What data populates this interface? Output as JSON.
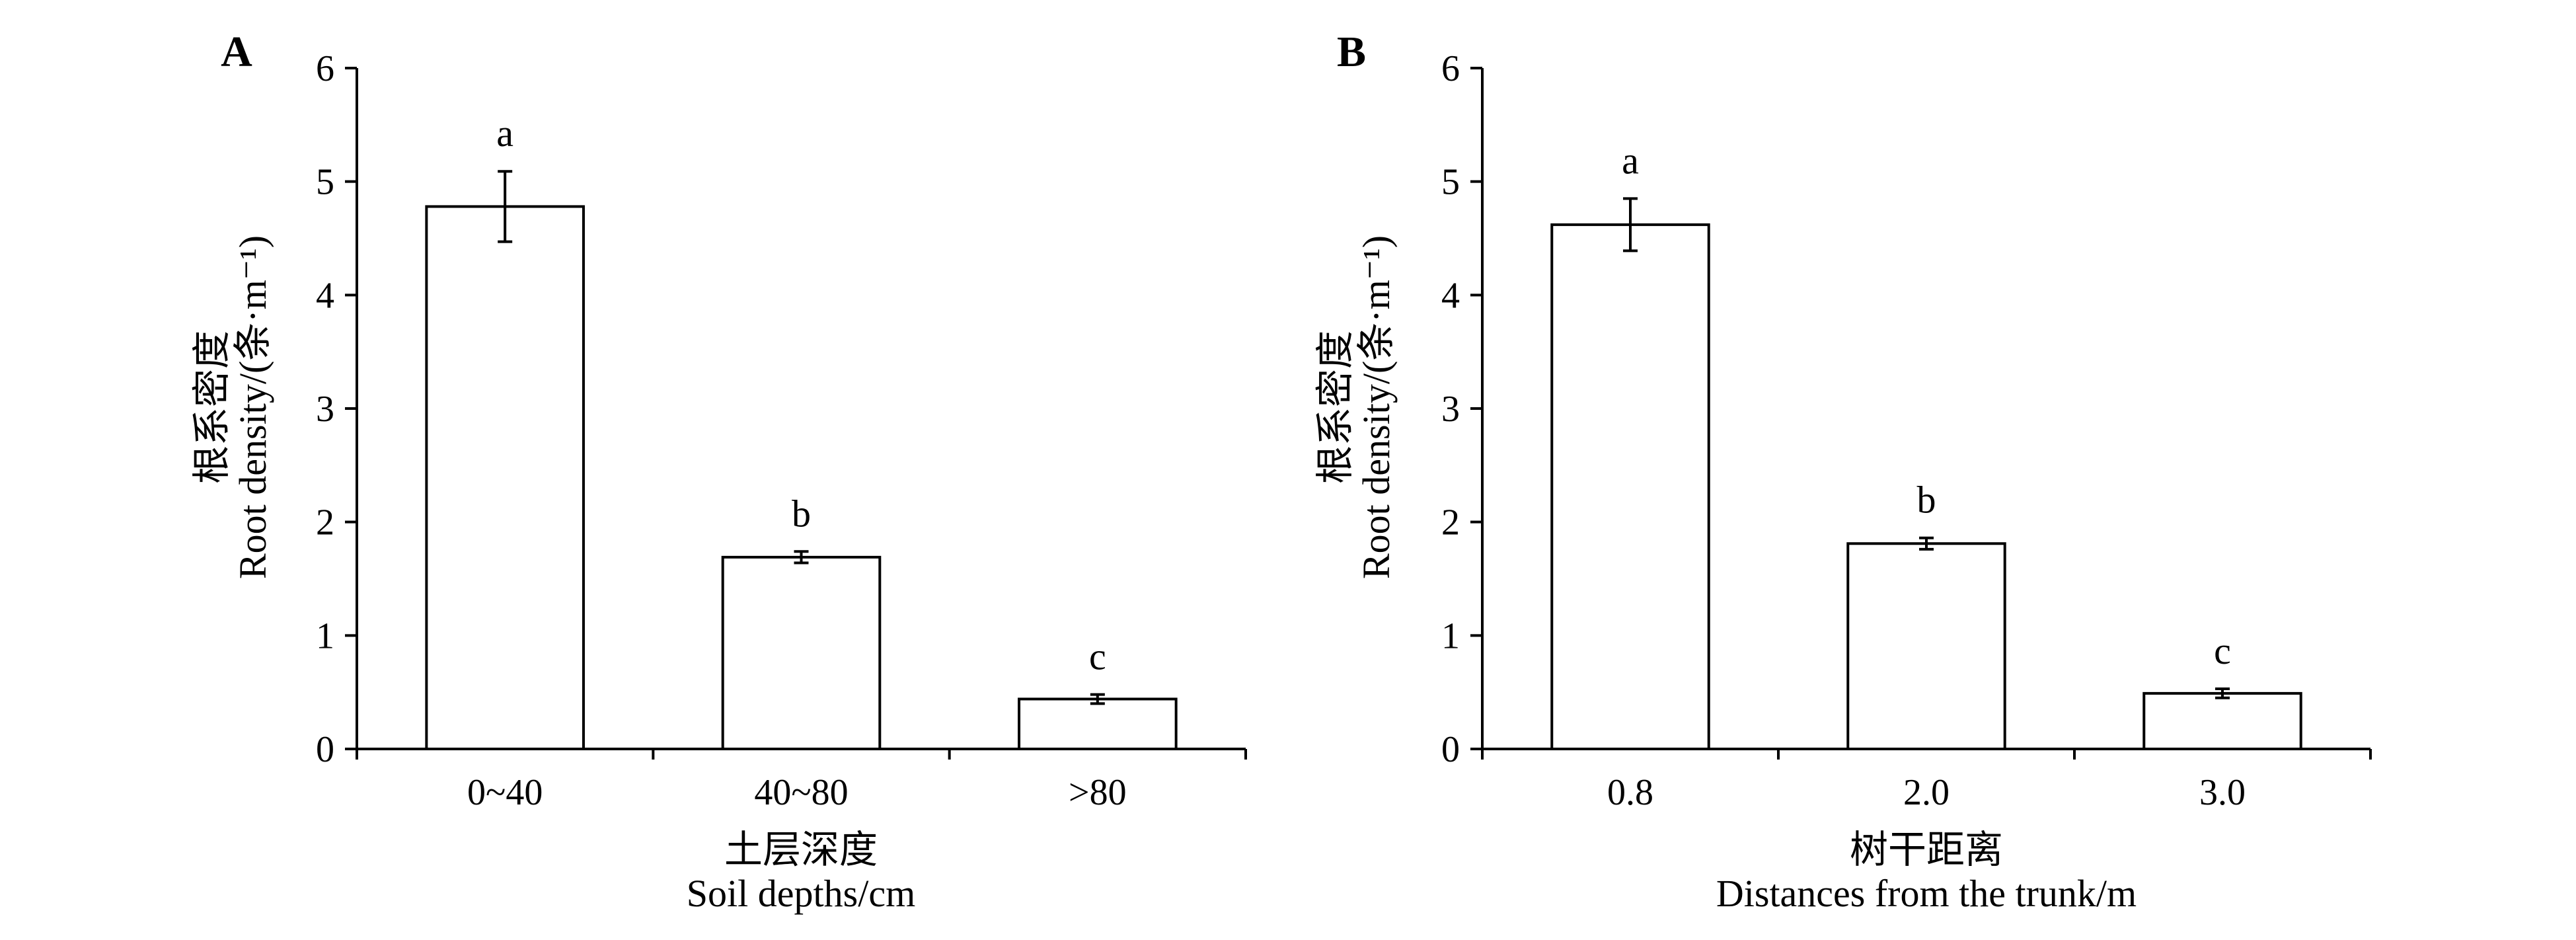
{
  "chart_data": [
    {
      "type": "bar",
      "panel": "A",
      "categories": [
        "0~40",
        "40~80",
        ">80"
      ],
      "values": [
        4.78,
        1.69,
        0.44
      ],
      "errors": [
        0.31,
        0.05,
        0.04
      ],
      "significance": [
        "a",
        "b",
        "c"
      ],
      "ylim": [
        0,
        6
      ],
      "yticks": [
        "0",
        "1",
        "2",
        "3",
        "4",
        "5",
        "6"
      ],
      "ylabel_cn": "根系密度",
      "ylabel_en": "Root density/(条·m⁻¹)",
      "xlabel_cn": "土层深度",
      "xlabel_en": "Soil depths/cm",
      "grid": false,
      "bar_fill": "#ffffff",
      "bar_stroke": "#000000"
    },
    {
      "type": "bar",
      "panel": "B",
      "categories": [
        "0.8",
        "2.0",
        "3.0"
      ],
      "values": [
        4.62,
        1.81,
        0.49
      ],
      "errors": [
        0.23,
        0.05,
        0.04
      ],
      "significance": [
        "a",
        "b",
        "c"
      ],
      "ylim": [
        0,
        6
      ],
      "yticks": [
        "0",
        "1",
        "2",
        "3",
        "4",
        "5",
        "6"
      ],
      "ylabel_cn": "根系密度",
      "ylabel_en": "Root density/(条·m⁻¹)",
      "xlabel_cn": "树干距离",
      "xlabel_en": "Distances from the trunk/m",
      "grid": false,
      "bar_fill": "#ffffff",
      "bar_stroke": "#000000"
    }
  ]
}
